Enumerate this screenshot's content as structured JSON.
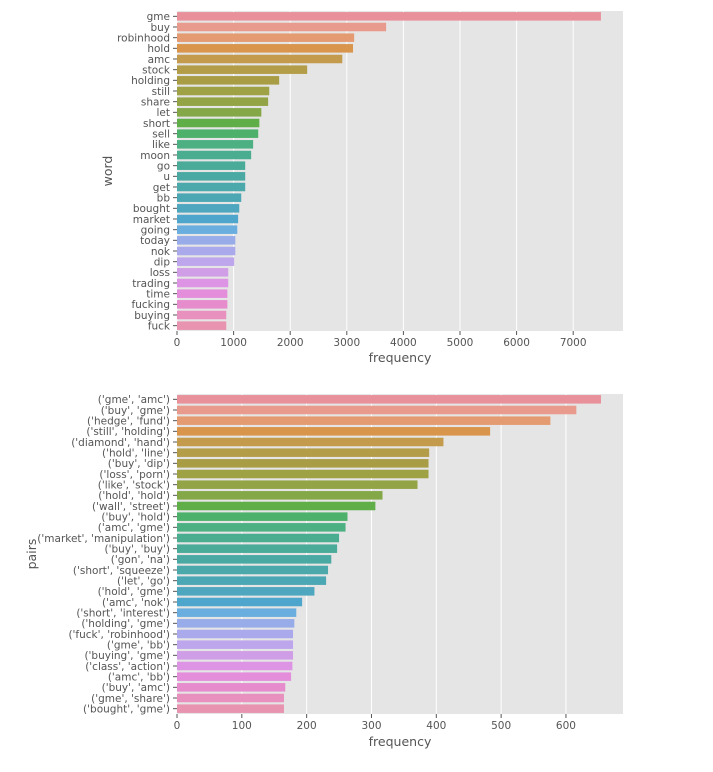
{
  "palette": [
    "#e8919b",
    "#e89a8c",
    "#e59b72",
    "#d8954b",
    "#c49a4c",
    "#b39d48",
    "#a89d45",
    "#9fa145",
    "#93a446",
    "#84a848",
    "#5fae48",
    "#4db16b",
    "#4cb083",
    "#4aad90",
    "#4aab99",
    "#4aa9a2",
    "#4ba8ab",
    "#4ca7b4",
    "#4ea6bf",
    "#4ea6cc",
    "#6aaee0",
    "#97ace8",
    "#aaa9ec",
    "#bea6ec",
    "#d09ee6",
    "#de94e4",
    "#e48edb",
    "#e68ccc",
    "#e890be",
    "#e893b0"
  ],
  "background_color": "#e5e5e5",
  "chart_data": [
    {
      "type": "bar",
      "orientation": "horizontal",
      "xlabel": "frequency",
      "ylabel": "word",
      "xlim": [
        0,
        7880
      ],
      "xticks": [
        0,
        1000,
        2000,
        3000,
        4000,
        5000,
        6000,
        7000
      ],
      "grid": true,
      "categories": [
        "gme",
        "buy",
        "robinhood",
        "hold",
        "amc",
        "stock",
        "holding",
        "still",
        "share",
        "let",
        "short",
        "sell",
        "like",
        "moon",
        "go",
        "u",
        "get",
        "bb",
        "bought",
        "market",
        "going",
        "today",
        "nok",
        "dip",
        "loss",
        "trading",
        "time",
        "fucking",
        "buying",
        "fuck"
      ],
      "values": [
        7490,
        3695,
        3130,
        3110,
        2920,
        2300,
        1805,
        1630,
        1610,
        1490,
        1455,
        1435,
        1345,
        1310,
        1205,
        1205,
        1205,
        1135,
        1100,
        1080,
        1065,
        1030,
        1030,
        1010,
        905,
        905,
        890,
        890,
        870,
        870
      ]
    },
    {
      "type": "bar",
      "orientation": "horizontal",
      "xlabel": "frequency",
      "ylabel": "pairs",
      "xlim": [
        0,
        688
      ],
      "xticks": [
        0,
        100,
        200,
        300,
        400,
        500,
        600
      ],
      "grid": true,
      "categories": [
        "('gme', 'amc')",
        "('buy', 'gme')",
        "('hedge', 'fund')",
        "('still', 'holding')",
        "('diamond', 'hand')",
        "('hold', 'line')",
        "('buy', 'dip')",
        "('loss', 'porn')",
        "('like', 'stock')",
        "('hold', 'hold')",
        "('wall', 'street')",
        "('buy', 'hold')",
        "('amc', 'gme')",
        "('market', 'manipulation')",
        "('buy', 'buy')",
        "('gon', 'na')",
        "('short', 'squeeze')",
        "('let', 'go')",
        "('hold', 'gme')",
        "('amc', 'nok')",
        "('short', 'interest')",
        "('holding', 'gme')",
        "('fuck', 'robinhood')",
        "('gme', 'bb')",
        "('buying', 'gme')",
        "('class', 'action')",
        "('amc', 'bb')",
        "('buy', 'amc')",
        "('gme', 'share')",
        "('bought', 'gme')"
      ],
      "values": [
        654,
        616,
        576,
        483,
        411,
        389,
        388,
        388,
        371,
        317,
        306,
        263,
        260,
        250,
        247,
        238,
        233,
        230,
        212,
        193,
        184,
        181,
        179,
        179,
        179,
        178,
        176,
        167,
        165,
        165
      ]
    }
  ]
}
